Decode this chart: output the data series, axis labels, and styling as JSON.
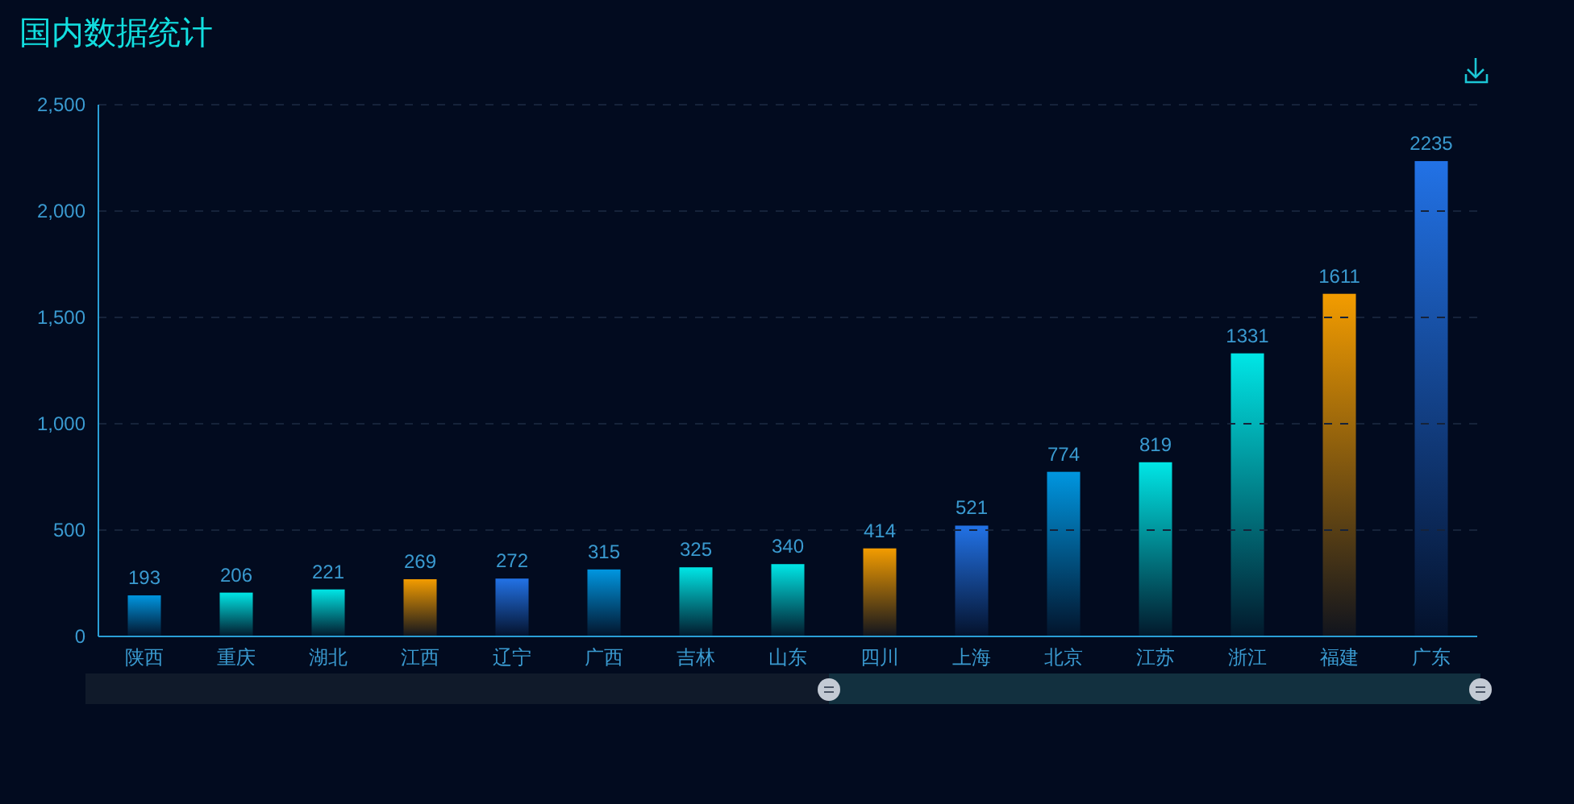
{
  "chart_data": {
    "type": "bar",
    "title": "国内数据统计",
    "categories": [
      "陕西",
      "重庆",
      "湖北",
      "江西",
      "辽宁",
      "广西",
      "吉林",
      "山东",
      "四川",
      "上海",
      "北京",
      "江苏",
      "浙江",
      "福建",
      "广东"
    ],
    "values": [
      193,
      206,
      221,
      269,
      272,
      315,
      325,
      340,
      414,
      521,
      774,
      819,
      1331,
      1611,
      2235
    ],
    "colors": [
      "#0096e0",
      "#00e6e6",
      "#00e6e6",
      "#f39c00",
      "#2272e6",
      "#0096e0",
      "#00e6e6",
      "#00e6e6",
      "#f39c00",
      "#2272e6",
      "#0096e0",
      "#00e6e6",
      "#00e6e6",
      "#f39c00",
      "#2272e6"
    ],
    "ylim": [
      0,
      2500
    ],
    "yticks": [
      0,
      500,
      {
        "value": 1000,
        "label": "1,000"
      },
      {
        "value": 1500,
        "label": "1,500"
      },
      {
        "value": 2000,
        "label": "2,000"
      },
      {
        "value": 2500,
        "label": "2,500"
      }
    ],
    "grid": "y",
    "data_labels": true
  }
}
